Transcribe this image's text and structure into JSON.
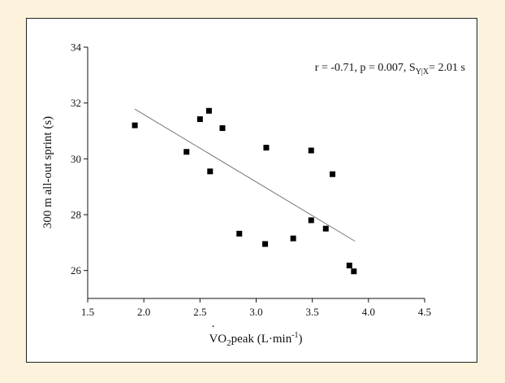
{
  "chart_data": {
    "type": "scatter",
    "title": "",
    "xlabel": {
      "prefix": "V",
      "overdot": "·",
      "sub": "2",
      "main": "O",
      "after": "peak (L·min",
      "sup": "-1",
      "close": ")"
    },
    "ylabel": "300 m all-out sprint (s)",
    "xlim": [
      1.5,
      4.5
    ],
    "ylim": [
      25,
      34
    ],
    "xticks": [
      "1.5",
      "2.0",
      "2.5",
      "3.0",
      "3.5",
      "4.0",
      "4.5"
    ],
    "yticks": [
      "26",
      "28",
      "30",
      "32",
      "34"
    ],
    "grid": false,
    "points": [
      {
        "x": 1.92,
        "y": 31.2
      },
      {
        "x": 2.38,
        "y": 30.25
      },
      {
        "x": 2.5,
        "y": 31.42
      },
      {
        "x": 2.58,
        "y": 31.72
      },
      {
        "x": 2.59,
        "y": 29.55
      },
      {
        "x": 2.7,
        "y": 31.1
      },
      {
        "x": 2.85,
        "y": 27.32
      },
      {
        "x": 3.08,
        "y": 26.95
      },
      {
        "x": 3.09,
        "y": 30.4
      },
      {
        "x": 3.33,
        "y": 27.15
      },
      {
        "x": 3.49,
        "y": 30.3
      },
      {
        "x": 3.49,
        "y": 27.8
      },
      {
        "x": 3.62,
        "y": 27.5
      },
      {
        "x": 3.68,
        "y": 29.45
      },
      {
        "x": 3.83,
        "y": 26.18
      },
      {
        "x": 3.87,
        "y": 25.97
      }
    ],
    "regression": {
      "x": [
        1.92,
        3.88
      ],
      "y": [
        31.78,
        27.05
      ]
    },
    "annotation": {
      "text": "r = -0.71, p = 0.007, S",
      "sub": "Y|X",
      "suffix": "= 2.01 s"
    },
    "colors": {
      "points": "#000000",
      "line": "#777777",
      "background": "#fdf3dc"
    }
  }
}
